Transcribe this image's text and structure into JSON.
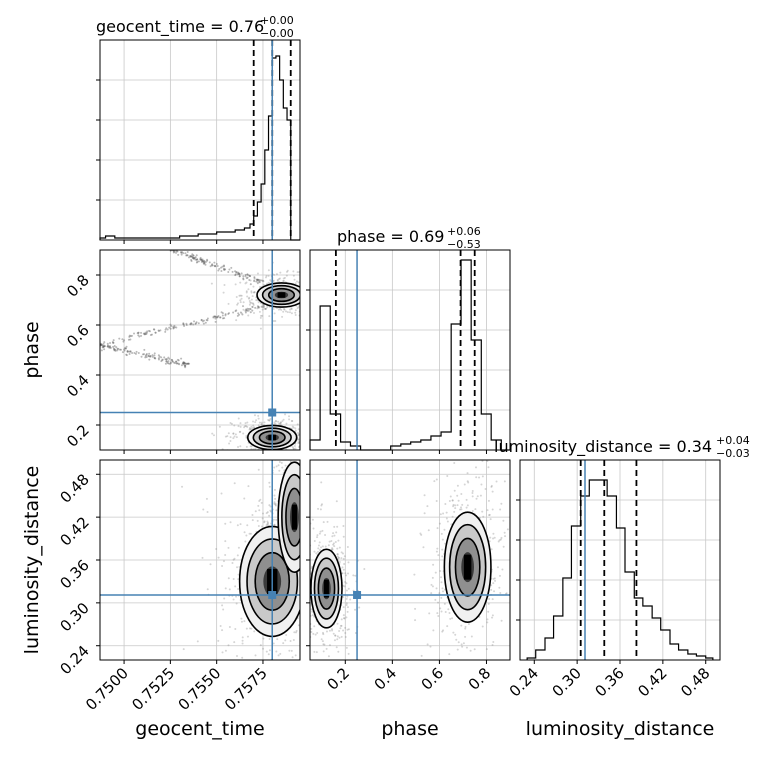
{
  "chart_data": {
    "type": "corner",
    "parameters": [
      "geocent_time",
      "phase",
      "luminosity_distance"
    ],
    "truths": {
      "geocent_time": 0.758,
      "phase": 0.25,
      "luminosity_distance": 0.311
    },
    "truth_color": "#4682b4",
    "quantile_color": "#000000",
    "grid": true,
    "panels": {
      "hist_geocent_time": {
        "title_main": "geocent_time = 0.76",
        "title_sup": "+0.00",
        "title_sub": "−0.00",
        "xlim": [
          0.7487,
          0.7595
        ],
        "ylim": [
          0,
          1
        ],
        "yticks": [
          0.2,
          0.4,
          0.6,
          0.8
        ],
        "quantiles": [
          0.757,
          0.758,
          0.759
        ],
        "bin_edges": [
          0.7487,
          0.749,
          0.7495,
          0.75,
          0.7505,
          0.751,
          0.7515,
          0.752,
          0.7525,
          0.753,
          0.7535,
          0.754,
          0.7545,
          0.755,
          0.7555,
          0.756,
          0.7565,
          0.7568,
          0.757,
          0.7572,
          0.7574,
          0.7576,
          0.7578,
          0.758,
          0.7582,
          0.7584,
          0.7586,
          0.7588,
          0.759,
          0.7595
        ],
        "counts": [
          0.01,
          0.02,
          0.01,
          0.01,
          0.01,
          0.01,
          0.01,
          0.01,
          0.01,
          0.02,
          0.02,
          0.03,
          0.03,
          0.04,
          0.04,
          0.05,
          0.06,
          0.08,
          0.12,
          0.19,
          0.28,
          0.45,
          0.62,
          0.91,
          0.92,
          0.8,
          0.66,
          0.6,
          0.0
        ]
      },
      "hist_phase": {
        "title_main": "phase = 0.69",
        "title_sup": "+0.06",
        "title_sub": "−0.53",
        "xlim": [
          0.05,
          0.9
        ],
        "ylim": [
          0,
          1
        ],
        "yticks": [
          0.2,
          0.4,
          0.6,
          0.8
        ],
        "quantiles": [
          0.16,
          0.69,
          0.75
        ],
        "bin_edges": [
          0.05,
          0.093,
          0.136,
          0.18,
          0.222,
          0.265,
          0.308,
          0.35,
          0.393,
          0.436,
          0.478,
          0.521,
          0.564,
          0.607,
          0.65,
          0.692,
          0.735,
          0.778,
          0.82,
          0.863,
          0.9
        ],
        "counts": [
          0.05,
          0.72,
          0.18,
          0.04,
          0.02,
          0.0,
          0.0,
          0.0,
          0.02,
          0.03,
          0.04,
          0.05,
          0.07,
          0.09,
          0.63,
          0.95,
          0.55,
          0.18,
          0.05,
          0.0
        ]
      },
      "hist_luminosity_distance": {
        "title_main": "luminosity_distance = 0.34",
        "title_sup": "+0.04",
        "title_sub": "−0.03",
        "xlim": [
          0.22,
          0.5
        ],
        "ylim": [
          0,
          1
        ],
        "quantiles": [
          0.305,
          0.338,
          0.383
        ],
        "bin_edges": [
          0.23,
          0.242,
          0.255,
          0.267,
          0.28,
          0.292,
          0.305,
          0.317,
          0.33,
          0.342,
          0.355,
          0.367,
          0.38,
          0.392,
          0.405,
          0.417,
          0.43,
          0.442,
          0.455,
          0.467,
          0.48,
          0.49
        ],
        "counts": [
          0.01,
          0.05,
          0.11,
          0.22,
          0.41,
          0.67,
          0.82,
          0.9,
          0.9,
          0.82,
          0.66,
          0.44,
          0.31,
          0.27,
          0.21,
          0.15,
          0.08,
          0.05,
          0.03,
          0.02,
          0.01
        ]
      },
      "scatter_phase_vs_geocent_time": {
        "xlim": [
          0.7487,
          0.7595
        ],
        "ylim": [
          0.1,
          0.9
        ],
        "yticks": [
          0.2,
          0.4,
          0.6,
          0.8
        ],
        "density_peaks": [
          {
            "x": 0.7585,
            "y": 0.72,
            "sx": 0.0006,
            "sy": 0.022
          },
          {
            "x": 0.758,
            "y": 0.15,
            "sx": 0.0006,
            "sy": 0.022
          }
        ],
        "streaks": [
          {
            "x0": 0.7487,
            "y0": 0.52,
            "x1": 0.7578,
            "y1": 0.68
          },
          {
            "x0": 0.7487,
            "y0": 0.52,
            "x1": 0.7535,
            "y1": 0.44
          },
          {
            "x0": 0.7525,
            "y0": 0.9,
            "x1": 0.7575,
            "y1": 0.77
          }
        ]
      },
      "scatter_ld_vs_geocent_time": {
        "xlim": [
          0.7487,
          0.7595
        ],
        "ylim": [
          0.22,
          0.5
        ],
        "xticks": [
          0.75,
          0.7525,
          0.755,
          0.7575
        ],
        "yticks": [
          0.24,
          0.3,
          0.36,
          0.42,
          0.48
        ],
        "xtick_labels": [
          "0.7500",
          "0.7525",
          "0.7550",
          "0.7575"
        ],
        "ytick_labels": [
          "0.24",
          "0.30",
          "0.36",
          "0.42",
          "0.48"
        ],
        "density_peaks": [
          {
            "x": 0.758,
            "y": 0.33,
            "sx": 0.0008,
            "sy": 0.035
          },
          {
            "x": 0.7592,
            "y": 0.42,
            "sx": 0.0004,
            "sy": 0.035
          }
        ]
      },
      "scatter_ld_vs_phase": {
        "xlim": [
          0.05,
          0.9
        ],
        "ylim": [
          0.22,
          0.5
        ],
        "xticks": [
          0.2,
          0.4,
          0.6,
          0.8
        ],
        "xtick_labels": [
          "0.2",
          "0.4",
          "0.6",
          "0.8"
        ],
        "density_peaks": [
          {
            "x": 0.12,
            "y": 0.32,
            "sx": 0.03,
            "sy": 0.025
          },
          {
            "x": 0.72,
            "y": 0.35,
            "sx": 0.045,
            "sy": 0.035
          }
        ]
      }
    },
    "bottom_labels": {
      "geocent_time": "geocent_time",
      "phase": "phase",
      "luminosity_distance": "luminosity_distance"
    },
    "left_labels": {
      "phase": "phase",
      "luminosity_distance": "luminosity_distance"
    },
    "ld_xticks": [
      0.24,
      0.3,
      0.36,
      0.42,
      0.48
    ],
    "ld_xtick_labels": [
      "0.24",
      "0.30",
      "0.36",
      "0.42",
      "0.48"
    ],
    "phase_ytick_labels": [
      "0.2",
      "0.4",
      "0.6",
      "0.8"
    ]
  }
}
